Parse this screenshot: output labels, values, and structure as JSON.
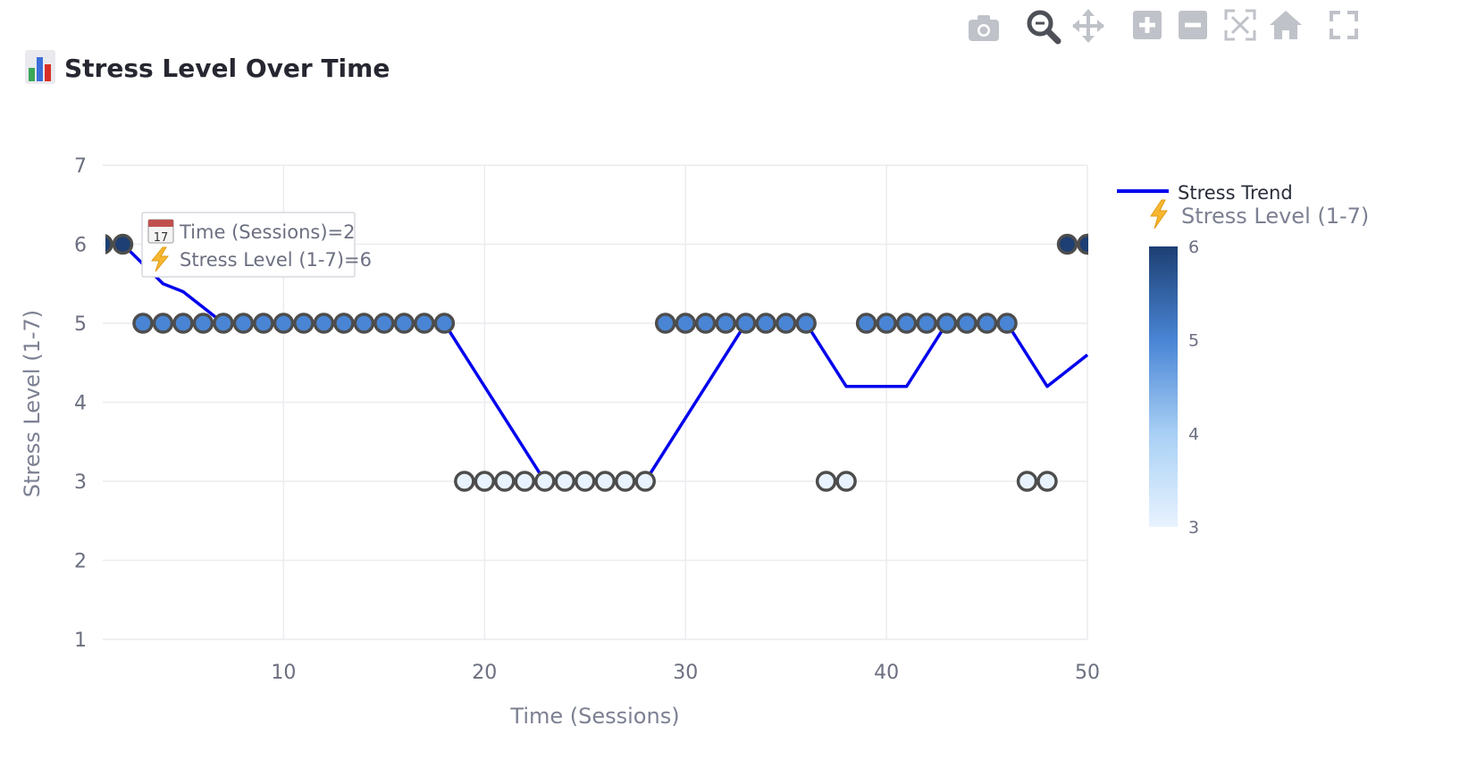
{
  "page": {
    "title": "Stress Level Over Time",
    "title_icon": "bar-chart-icon"
  },
  "modebar": {
    "buttons": [
      {
        "name": "camera-icon",
        "label": "Download plot as a png"
      },
      {
        "name": "zoom-icon",
        "label": "Zoom"
      },
      {
        "name": "pan-icon",
        "label": "Pan"
      },
      {
        "name": "zoom-in-icon",
        "label": "Zoom in"
      },
      {
        "name": "zoom-out-icon",
        "label": "Zoom out"
      },
      {
        "name": "autoscale-icon",
        "label": "Autoscale"
      },
      {
        "name": "home-icon",
        "label": "Reset axes"
      },
      {
        "name": "fullscreen-icon",
        "label": "Fullscreen"
      }
    ]
  },
  "tooltip": {
    "line1": "Time (Sessions)=2",
    "line2": "Stress Level (1-7)=6",
    "icon1": "calendar-icon",
    "icon2": "lightning-icon"
  },
  "chart_data": {
    "type": "line",
    "xlabel": "Time (Sessions)",
    "ylabel": "Stress Level (1-7)",
    "xlim": [
      1,
      50
    ],
    "ylim": [
      1,
      7
    ],
    "xticks": [
      10,
      20,
      30,
      40,
      50
    ],
    "yticks": [
      1,
      2,
      3,
      4,
      5,
      6,
      7
    ],
    "grid": true,
    "legend_position": "right",
    "colors": {
      "trend": "#0000ee",
      "marker_outline": "#4d4d4d",
      "scale_low": "#e8f3ff",
      "scale_mid": "#4a86d6",
      "scale_high": "#1d3f73"
    },
    "series": [
      {
        "name": "Stress Trend",
        "x": [
          1,
          2,
          3,
          4,
          5,
          6,
          7,
          8,
          9,
          10,
          11,
          12,
          13,
          14,
          15,
          16,
          17,
          18,
          19,
          20,
          21,
          22,
          23,
          24,
          25,
          26,
          27,
          28,
          29,
          30,
          31,
          32,
          33,
          34,
          35,
          36,
          37,
          38,
          39,
          40,
          41,
          42,
          43,
          44,
          45,
          46,
          47,
          48,
          49,
          50
        ],
        "values": [
          6,
          6,
          5.75,
          5.5,
          5.4,
          5.2,
          5,
          5,
          5,
          5,
          5,
          5,
          5,
          5,
          5,
          5,
          5,
          5,
          4.6,
          4.2,
          3.8,
          3.4,
          3,
          3,
          3,
          3,
          3,
          3,
          3.4,
          3.8,
          4.2,
          4.6,
          5,
          5,
          5,
          5,
          4.6,
          4.2,
          4.2,
          4.2,
          4.2,
          4.6,
          5,
          5,
          5,
          5,
          4.6,
          4.2,
          4.4,
          4.6
        ]
      },
      {
        "name": "Stress Level (1-7)",
        "x": [
          1,
          2,
          3,
          4,
          5,
          6,
          7,
          8,
          9,
          10,
          11,
          12,
          13,
          14,
          15,
          16,
          17,
          18,
          19,
          20,
          21,
          22,
          23,
          24,
          25,
          26,
          27,
          28,
          29,
          30,
          31,
          32,
          33,
          34,
          35,
          36,
          37,
          38,
          39,
          40,
          41,
          42,
          43,
          44,
          45,
          46,
          47,
          48,
          49,
          50
        ],
        "values": [
          6,
          6,
          5,
          5,
          5,
          5,
          5,
          5,
          5,
          5,
          5,
          5,
          5,
          5,
          5,
          5,
          5,
          5,
          3,
          3,
          3,
          3,
          3,
          3,
          3,
          3,
          3,
          3,
          5,
          5,
          5,
          5,
          5,
          5,
          5,
          5,
          3,
          3,
          5,
          5,
          5,
          5,
          5,
          5,
          5,
          5,
          3,
          3,
          6,
          6
        ]
      }
    ],
    "colorbar": {
      "min": 3,
      "max": 6,
      "ticks": [
        3,
        4,
        5,
        6
      ]
    }
  }
}
